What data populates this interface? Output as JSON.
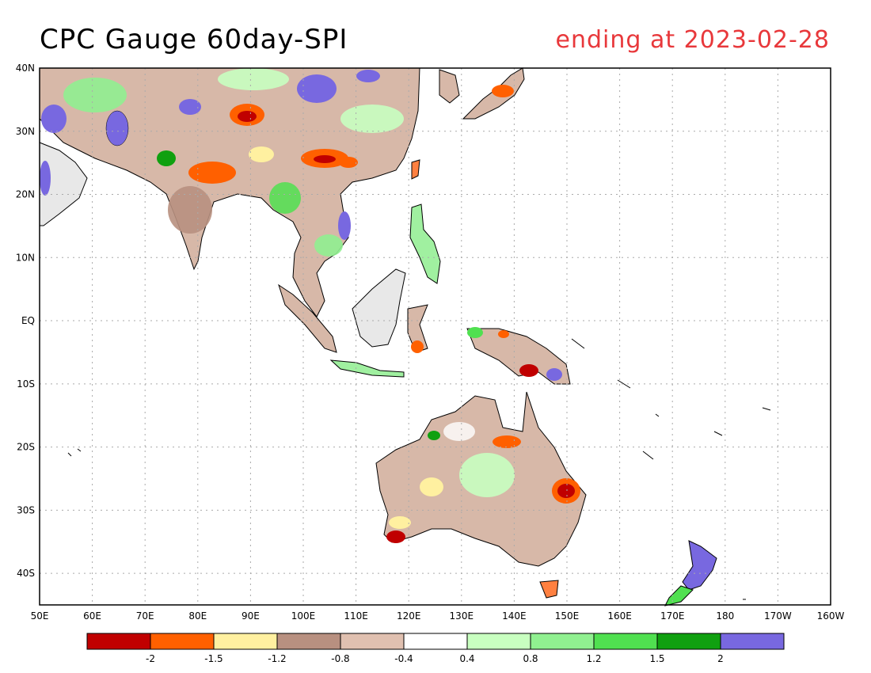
{
  "header": {
    "title": "CPC Gauge 60day-SPI",
    "subtitle": "ending at 2023-02-28"
  },
  "map": {
    "lon_range": [
      50,
      200
    ],
    "lat_range": [
      -45,
      40
    ],
    "lat_ticks": [
      {
        "value": 40,
        "label": "40N"
      },
      {
        "value": 30,
        "label": "30N"
      },
      {
        "value": 20,
        "label": "20N"
      },
      {
        "value": 10,
        "label": "10N"
      },
      {
        "value": 0,
        "label": "EQ"
      },
      {
        "value": -10,
        "label": "10S"
      },
      {
        "value": -20,
        "label": "20S"
      },
      {
        "value": -30,
        "label": "30S"
      },
      {
        "value": -40,
        "label": "40S"
      }
    ],
    "lon_ticks": [
      {
        "value": 50,
        "label": "50E"
      },
      {
        "value": 60,
        "label": "60E"
      },
      {
        "value": 70,
        "label": "70E"
      },
      {
        "value": 80,
        "label": "80E"
      },
      {
        "value": 90,
        "label": "90E"
      },
      {
        "value": 100,
        "label": "100E"
      },
      {
        "value": 110,
        "label": "110E"
      },
      {
        "value": 120,
        "label": "120E"
      },
      {
        "value": 130,
        "label": "130E"
      },
      {
        "value": 140,
        "label": "140E"
      },
      {
        "value": 150,
        "label": "150E"
      },
      {
        "value": 160,
        "label": "160E"
      },
      {
        "value": 170,
        "label": "170E"
      },
      {
        "value": 180,
        "label": "180"
      },
      {
        "value": 190,
        "label": "170W"
      },
      {
        "value": 200,
        "label": "160W"
      }
    ],
    "grid": true,
    "grid_color": "#aaaaaa"
  },
  "legend": {
    "colors": [
      "#c00000",
      "#ff6000",
      "#fff0a0",
      "#b89080",
      "#e0c0b0",
      "#ffffff",
      "#c8ffc0",
      "#90f090",
      "#50e050",
      "#10a010",
      "#7868e0"
    ],
    "labels": [
      "-2",
      "-1.5",
      "-1.2",
      "-0.8",
      "-0.4",
      "0.4",
      "0.8",
      "1.2",
      "1.5",
      "2"
    ]
  },
  "colors": {
    "title": "#000000",
    "subtitle": "#e8383b"
  }
}
